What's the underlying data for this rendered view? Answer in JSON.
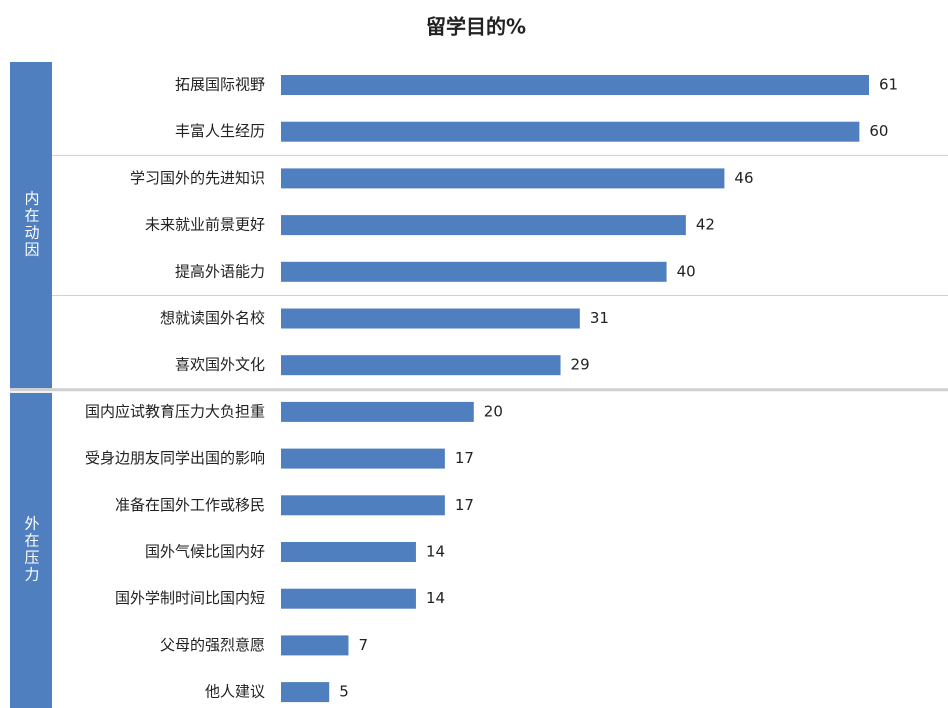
{
  "chart_data": {
    "type": "bar",
    "title": "留学目的%",
    "color": "#4f7fbe",
    "groups": [
      {
        "name": "内在动因",
        "categories": [
          "拓展国际视野",
          "丰富人生经历",
          "学习国外的先进知识",
          "未来就业前景更好",
          "提高外语能力",
          "想就读国外名校",
          "喜欢国外文化"
        ],
        "values": [
          61,
          60,
          46,
          42,
          40,
          31,
          29
        ]
      },
      {
        "name": "外在压力",
        "categories": [
          "国内应试教育压力大负担重",
          "受身边朋友同学出国的影响",
          "准备在国外工作或移民",
          "国外气候比国内好",
          "国外学制时间比国内短",
          "父母的强烈意愿",
          "他人建议"
        ],
        "values": [
          20,
          17,
          17,
          14,
          14,
          7,
          5
        ]
      }
    ]
  }
}
